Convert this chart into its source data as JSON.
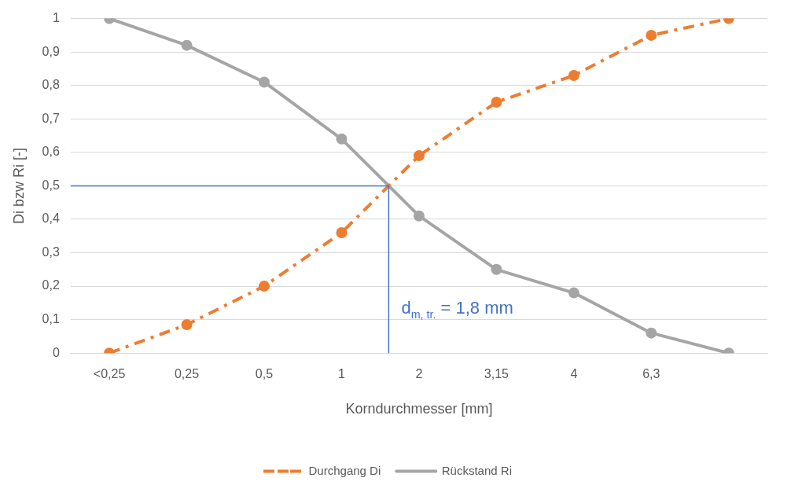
{
  "chart_data": {
    "type": "line",
    "xlabel": "Korndurchmesser [mm]",
    "ylabel": "Di bzw Ri [-]",
    "categories": [
      "<0,25",
      "0,25",
      "0,5",
      "1",
      "2",
      "3,15",
      "4",
      "6,3",
      null
    ],
    "series": [
      {
        "name": "Durchgang Di",
        "color": "#ed7d31",
        "line_style": "dashed",
        "values": [
          0,
          0.085,
          0.2,
          0.36,
          0.59,
          0.75,
          0.83,
          0.95,
          1.0
        ]
      },
      {
        "name": "Rückstand Ri",
        "color": "#a5a5a5",
        "line_style": "solid",
        "values": [
          1.0,
          0.92,
          0.81,
          0.64,
          0.41,
          0.25,
          0.18,
          0.06,
          0
        ]
      }
    ],
    "ylim": [
      0,
      1
    ],
    "yticks": [
      0,
      {
        "value": 0.1,
        "label": "0,1"
      },
      {
        "value": 0.2,
        "label": "0,2"
      },
      {
        "value": 0.3,
        "label": "0,3"
      },
      {
        "value": 0.4,
        "label": "0,4"
      },
      {
        "value": 0.5,
        "label": "0,5"
      },
      {
        "value": 0.6,
        "label": "0,6"
      },
      {
        "value": 0.7,
        "label": "0,7"
      },
      {
        "value": 0.8,
        "label": "0,8"
      },
      {
        "value": 0.9,
        "label": "0,9"
      },
      1
    ],
    "grid": "y",
    "legend": "bottom",
    "marker": "circle",
    "ref_lines": [
      {
        "axis": "y",
        "value": 0.5,
        "color": "#4472c4"
      }
    ],
    "annotations": [
      "d$_{m, tr.}$ = 1,8 mm"
    ]
  }
}
